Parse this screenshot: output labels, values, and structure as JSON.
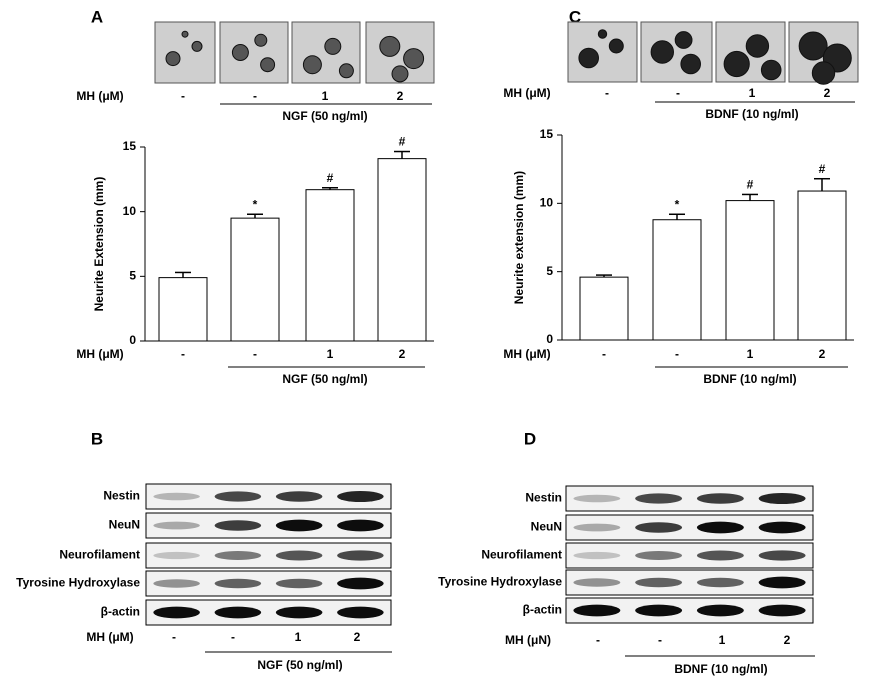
{
  "chart_data": [
    {
      "type": "bar",
      "panel": "A",
      "ylabel": "Neurite Extension (mm)",
      "categories": [
        "-",
        "-",
        "1",
        "2"
      ],
      "x_label": "MH (μM)",
      "group_label": "NGF (50 ng/ml)",
      "values": [
        4.9,
        9.5,
        11.7,
        14.1
      ],
      "errors": [
        0.4,
        0.3,
        0.15,
        0.55
      ],
      "annotations": [
        null,
        "*",
        "#",
        "#"
      ],
      "color": "#ffffff",
      "ylim": [
        0,
        15
      ],
      "yticks": [
        0,
        5,
        10,
        15
      ]
    },
    {
      "type": "bar",
      "panel": "C",
      "ylabel": "Neurite extension (mm)",
      "categories": [
        "-",
        "-",
        "1",
        "2"
      ],
      "x_label": "MH (μM)",
      "group_label": "BDNF (10 ng/ml)",
      "values": [
        4.6,
        8.8,
        10.2,
        10.9
      ],
      "errors": [
        0.15,
        0.4,
        0.45,
        0.9
      ],
      "annotations": [
        null,
        "*",
        "#",
        "#"
      ],
      "color": "#ffffff",
      "ylim": [
        0,
        15
      ],
      "yticks": [
        0,
        5,
        10,
        15
      ]
    }
  ],
  "images": [
    {
      "x_label": "MH (μM)",
      "labels": [
        "-",
        "-",
        "1",
        "2"
      ],
      "group_label": "NGF (50 ng/ml)"
    },
    {
      "x_label": "MH (μM)",
      "labels": [
        "-",
        "-",
        "1",
        "2"
      ],
      "group_label": "BDNF (10 ng/ml)"
    }
  ],
  "blots": [
    {
      "panel": "B",
      "rows": [
        "Nestin",
        "NeuN",
        "Neurofilament",
        "Tyrosine Hydroxylase",
        "β-actin"
      ],
      "x_label": "MH (μM)",
      "labels": [
        "-",
        "-",
        "1",
        "2"
      ],
      "group_label": "NGF (50 ng/ml)"
    },
    {
      "panel": "D",
      "rows": [
        "Nestin",
        "NeuN",
        "Neurofilament",
        "Tyrosine Hydroxylase",
        "β-actin"
      ],
      "x_label": "MH (μN)",
      "labels": [
        "-",
        "-",
        "1",
        "2"
      ],
      "group_label": "BDNF (10 ng/ml)"
    }
  ]
}
